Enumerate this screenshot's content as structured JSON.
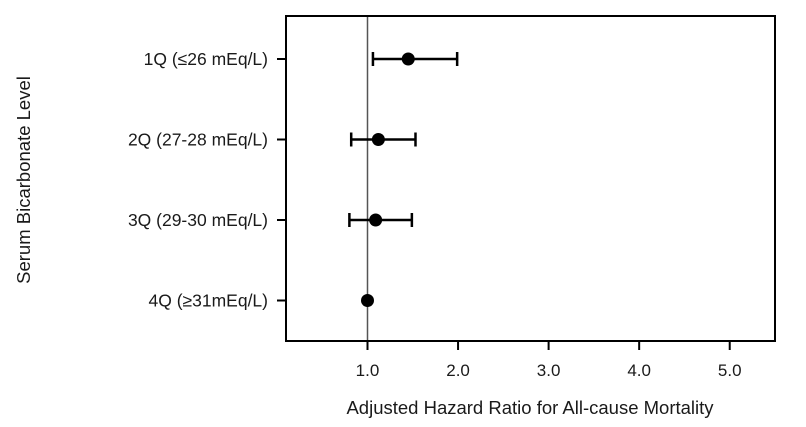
{
  "chart_data": {
    "type": "scatter",
    "xlabel": "Adjusted Hazard Ratio for All-cause Mortality",
    "ylabel": "Serum Bicarbonate Level",
    "xlim": [
      0.1,
      5.5
    ],
    "xticks": [
      1.0,
      2.0,
      3.0,
      4.0,
      5.0
    ],
    "xtick_labels": [
      "1.0",
      "2.0",
      "3.0",
      "4.0",
      "5.0"
    ],
    "reference_line": 1.0,
    "grid": false,
    "legend": "none",
    "categories": [
      "1Q (≤26 mEq/L)",
      "2Q (27-28 mEq/L)",
      "3Q (29-30 mEq/L)",
      "4Q (≥31mEq/L)"
    ],
    "points": [
      {
        "category": "1Q (≤26 mEq/L)",
        "value": 1.45,
        "ci_low": 1.06,
        "ci_high": 1.99
      },
      {
        "category": "2Q (27-28 mEq/L)",
        "value": 1.12,
        "ci_low": 0.82,
        "ci_high": 1.53
      },
      {
        "category": "3Q (29-30 mEq/L)",
        "value": 1.09,
        "ci_low": 0.8,
        "ci_high": 1.49
      },
      {
        "category": "4Q (≥31mEq/L)",
        "value": 1.0,
        "ci_low": null,
        "ci_high": null
      }
    ],
    "colors": {
      "marker": "#000000",
      "reference": "#555555",
      "axis": "#000000"
    }
  }
}
